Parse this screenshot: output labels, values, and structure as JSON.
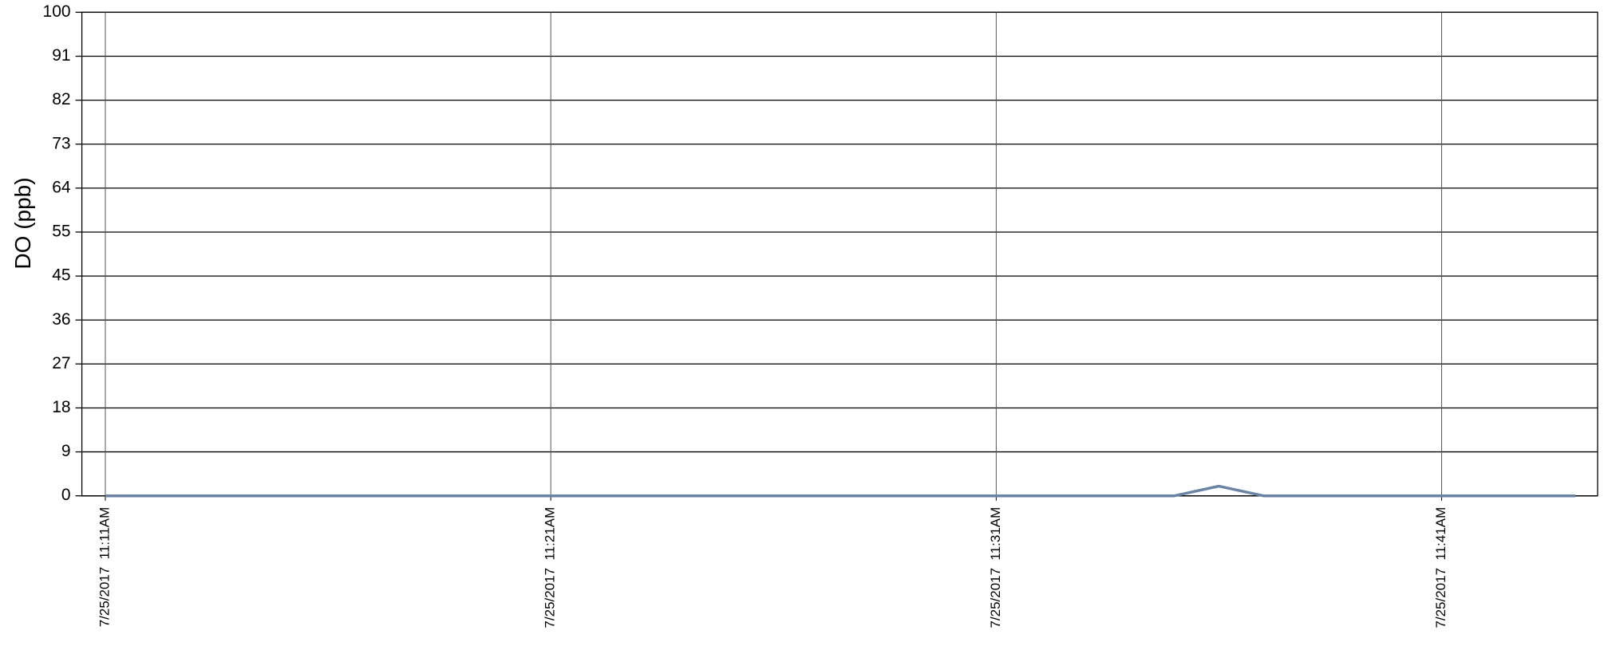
{
  "chart_data": {
    "type": "line",
    "y_label": "DO (ppb)",
    "x": [
      "7/25/2017 11:11AM",
      "7/25/2017 11:12AM",
      "7/25/2017 11:13AM",
      "7/25/2017 11:14AM",
      "7/25/2017 11:15AM",
      "7/25/2017 11:16AM",
      "7/25/2017 11:17AM",
      "7/25/2017 11:18AM",
      "7/25/2017 11:19AM",
      "7/25/2017 11:20AM",
      "7/25/2017 11:21AM",
      "7/25/2017 11:22AM",
      "7/25/2017 11:23AM",
      "7/25/2017 11:24AM",
      "7/25/2017 11:25AM",
      "7/25/2017 11:26AM",
      "7/25/2017 11:27AM",
      "7/25/2017 11:28AM",
      "7/25/2017 11:29AM",
      "7/25/2017 11:30AM",
      "7/25/2017 11:31AM",
      "7/25/2017 11:32AM",
      "7/25/2017 11:33AM",
      "7/25/2017 11:34AM",
      "7/25/2017 11:35AM",
      "7/25/2017 11:36AM",
      "7/25/2017 11:37AM",
      "7/25/2017 11:38AM",
      "7/25/2017 11:39AM",
      "7/25/2017 11:40AM",
      "7/25/2017 11:41AM",
      "7/25/2017 11:42AM",
      "7/25/2017 11:43AM",
      "7/25/2017 11:44AM"
    ],
    "series": [
      {
        "color": "#6b84a3",
        "values": [
          0,
          0,
          0,
          0,
          0,
          0,
          0,
          0,
          0,
          0,
          0,
          0,
          0,
          0,
          0,
          0,
          0,
          0,
          0,
          0,
          0,
          0,
          0,
          0,
          0,
          2,
          0,
          0,
          0,
          0,
          0,
          0,
          0,
          0
        ]
      }
    ],
    "xlim": [
      "7/25/2017 11:11AM",
      "7/25/2017 11:44AM"
    ],
    "xticks": [
      {
        "value": "7/25/2017 11:11AM",
        "label": "7/25/2017  11:11AM"
      },
      {
        "value": "7/25/2017 11:21AM",
        "label": "7/25/2017  11:21AM"
      },
      {
        "value": "7/25/2017 11:31AM",
        "label": "7/25/2017  11:31AM"
      },
      {
        "value": "7/25/2017 11:41AM",
        "label": "7/25/2017  11:41AM"
      }
    ],
    "ylim": [
      0,
      100
    ],
    "yticks": [
      0,
      {
        "value": 9.09,
        "label": "9"
      },
      {
        "value": 18.18,
        "label": "18"
      },
      {
        "value": 27.27,
        "label": "27"
      },
      {
        "value": 36.36,
        "label": "36"
      },
      {
        "value": 45.45,
        "label": "45"
      },
      {
        "value": 54.55,
        "label": "55"
      },
      {
        "value": 63.64,
        "label": "64"
      },
      {
        "value": 72.73,
        "label": "73"
      },
      {
        "value": 81.82,
        "label": "82"
      },
      {
        "value": 90.91,
        "label": "91"
      },
      100
    ],
    "grid": true
  }
}
